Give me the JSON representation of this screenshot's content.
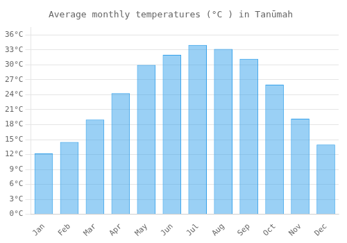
{
  "chart_data": {
    "type": "bar",
    "title": "Average monthly temperatures (°C ) in Tanūmah",
    "categories": [
      "Jan",
      "Feb",
      "Mar",
      "Apr",
      "May",
      "Jun",
      "Jul",
      "Aug",
      "Sep",
      "Oct",
      "Nov",
      "Dec"
    ],
    "values": [
      12.2,
      14.5,
      19.0,
      24.3,
      30.0,
      32.0,
      34.0,
      33.2,
      31.2,
      26.0,
      19.2,
      14.0
    ],
    "ylim": [
      0,
      37.5
    ],
    "yticks": [
      {
        "value": 0,
        "label": "0°C"
      },
      {
        "value": 3,
        "label": "3°C"
      },
      {
        "value": 6,
        "label": "6°C"
      },
      {
        "value": 9,
        "label": "9°C"
      },
      {
        "value": 12,
        "label": "12°C"
      },
      {
        "value": 15,
        "label": "15°C"
      },
      {
        "value": 18,
        "label": "18°C"
      },
      {
        "value": 21,
        "label": "21°C"
      },
      {
        "value": 24,
        "label": "24°C"
      },
      {
        "value": 27,
        "label": "27°C"
      },
      {
        "value": 30,
        "label": "30°C"
      },
      {
        "value": 33,
        "label": "33°C"
      },
      {
        "value": 36,
        "label": "36°C"
      }
    ],
    "grid": true
  }
}
